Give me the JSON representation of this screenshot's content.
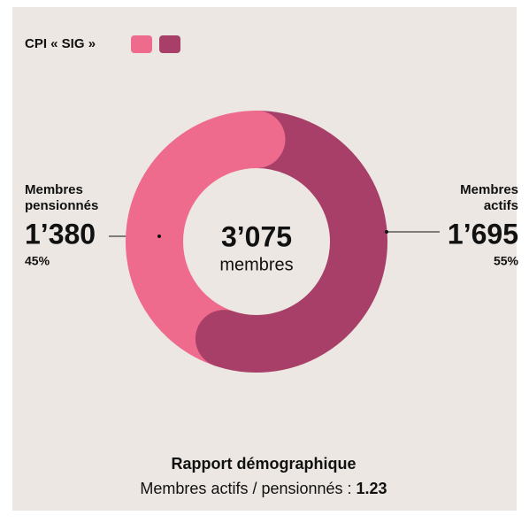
{
  "chart_data": {
    "type": "donut",
    "legend": "CPI « SIG »",
    "categories": [
      [
        "Membres",
        "pensionnés"
      ],
      [
        "Membres",
        "actifs"
      ]
    ],
    "values": [
      1380,
      1695
    ],
    "value_labels": [
      "1’380",
      "1’695"
    ],
    "percentages": [
      45,
      55
    ],
    "percentage_labels": [
      "45%",
      "55%"
    ],
    "colors": [
      "#ef6b8d",
      "#a83f68"
    ],
    "total": 3075,
    "total_label": "3’075",
    "total_unit": "membres",
    "footer_title": "Rapport démographique",
    "footer_text": "Membres actifs / pensionnés : ",
    "ratio": 1.23
  }
}
